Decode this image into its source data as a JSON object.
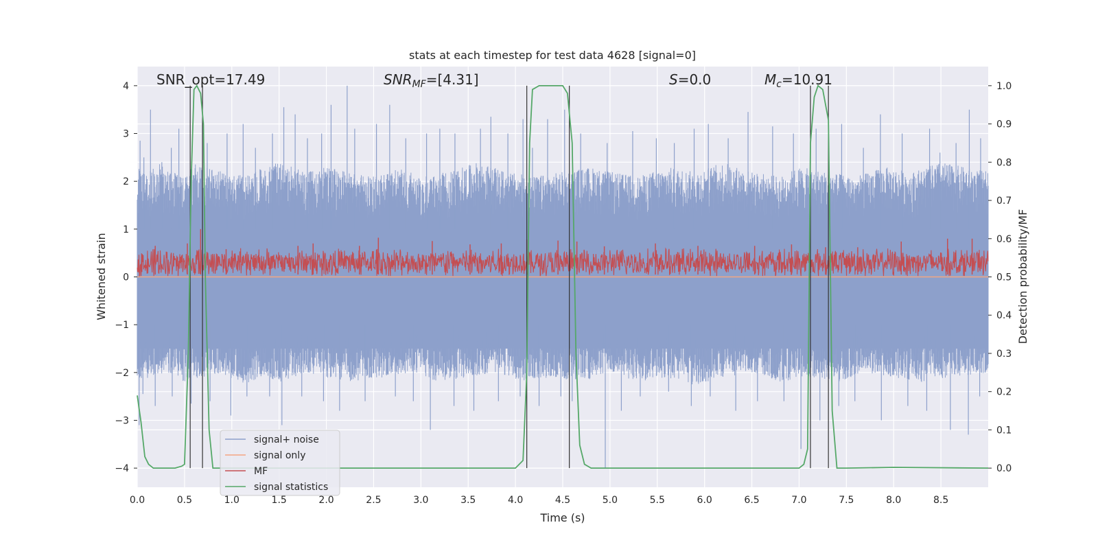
{
  "chart_data": {
    "type": "line",
    "title": "stats at each timestep for test data 4628 [signal=0]",
    "xlabel": "Time (s)",
    "ylabel": "Whitened strain",
    "ylabel_right": "Detection probability/MF",
    "xlim": [
      0.0,
      9.0
    ],
    "ylim": [
      -4.4,
      4.4
    ],
    "ylim_right": [
      -0.05,
      1.05
    ],
    "xticks": [
      0.0,
      0.5,
      1.0,
      1.5,
      2.0,
      2.5,
      3.0,
      3.5,
      4.0,
      4.5,
      5.0,
      5.5,
      6.0,
      6.5,
      7.0,
      7.5,
      8.0,
      8.5
    ],
    "xtick_labels": [
      "0.0",
      "0.5",
      "1.0",
      "1.5",
      "2.0",
      "2.5",
      "3.0",
      "3.5",
      "4.0",
      "4.5",
      "5.0",
      "5.5",
      "6.0",
      "6.5",
      "7.0",
      "7.5",
      "8.0",
      "8.5"
    ],
    "yticks": [
      -4,
      -3,
      -2,
      -1,
      0,
      1,
      2,
      3,
      4
    ],
    "ytick_labels": [
      "−4",
      "−3",
      "−2",
      "−1",
      "0",
      "1",
      "2",
      "3",
      "4"
    ],
    "yticks_right": [
      0.0,
      0.1,
      0.2,
      0.3,
      0.4,
      0.5,
      0.6,
      0.7,
      0.8,
      0.9,
      1.0
    ],
    "ytick_labels_right": [
      "0.0",
      "0.1",
      "0.2",
      "0.3",
      "0.4",
      "0.5",
      "0.6",
      "0.7",
      "0.8",
      "0.9",
      "1.0"
    ],
    "grid": true,
    "legend_position": "lower-left",
    "annotations": {
      "snr_opt": "SNR_opt=17.49",
      "snr_mf_sym": "SNR",
      "snr_mf_sub": "MF",
      "snr_mf_rest": "=[4.31]",
      "s_sym": "S",
      "s_rest": "=0.0",
      "mc_sym": "M",
      "mc_sub": "c",
      "mc_rest": "=10.91"
    },
    "detection_windows": [
      [
        0.56,
        0.69
      ],
      [
        4.12,
        4.57
      ],
      [
        7.12,
        7.31
      ]
    ],
    "series": [
      {
        "name": "signal+ noise",
        "color": "#8da0cb",
        "axis": "left",
        "style": "noise",
        "envelope_upper": [
          [
            0.0,
            2.3
          ],
          [
            0.1,
            2.2
          ],
          [
            0.2,
            2.4
          ],
          [
            0.3,
            2.3
          ],
          [
            0.5,
            2.1
          ],
          [
            0.6,
            2.4
          ],
          [
            0.7,
            2.3
          ],
          [
            0.9,
            2.2
          ],
          [
            1.0,
            2.1
          ],
          [
            1.2,
            2.2
          ],
          [
            1.5,
            2.4
          ],
          [
            1.8,
            2.2
          ],
          [
            2.0,
            2.3
          ],
          [
            2.2,
            2.2
          ],
          [
            2.5,
            2.1
          ],
          [
            2.8,
            2.3
          ],
          [
            3.0,
            2.1
          ],
          [
            3.3,
            2.2
          ],
          [
            3.6,
            2.4
          ],
          [
            3.9,
            2.2
          ],
          [
            4.2,
            2.1
          ],
          [
            4.5,
            2.2
          ],
          [
            4.8,
            2.3
          ],
          [
            5.0,
            2.2
          ],
          [
            5.3,
            2.1
          ],
          [
            5.6,
            2.3
          ],
          [
            5.9,
            2.2
          ],
          [
            6.2,
            2.4
          ],
          [
            6.5,
            2.2
          ],
          [
            6.8,
            2.1
          ],
          [
            7.0,
            2.3
          ],
          [
            7.3,
            2.2
          ],
          [
            7.6,
            2.1
          ],
          [
            7.9,
            2.3
          ],
          [
            8.2,
            2.2
          ],
          [
            8.5,
            2.4
          ],
          [
            9.0,
            2.2
          ]
        ],
        "peak_lines": [
          [
            0.03,
            2.85
          ],
          [
            0.07,
            2.5
          ],
          [
            0.14,
            3.5
          ],
          [
            0.26,
            2.4
          ],
          [
            0.36,
            2.7
          ],
          [
            0.44,
            3.1
          ],
          [
            0.69,
            3.2
          ],
          [
            0.74,
            2.8
          ],
          [
            0.95,
            3.0
          ],
          [
            1.12,
            3.2
          ],
          [
            1.25,
            2.7
          ],
          [
            1.43,
            3.0
          ],
          [
            1.55,
            3.55
          ],
          [
            1.67,
            3.4
          ],
          [
            1.8,
            2.9
          ],
          [
            1.95,
            3.0
          ],
          [
            2.05,
            3.6
          ],
          [
            2.22,
            4.0
          ],
          [
            2.3,
            3.1
          ],
          [
            2.53,
            3.2
          ],
          [
            2.67,
            3.6
          ],
          [
            2.84,
            2.9
          ],
          [
            3.06,
            3.0
          ],
          [
            3.2,
            3.1
          ],
          [
            3.36,
            3.0
          ],
          [
            3.63,
            3.1
          ],
          [
            3.74,
            3.35
          ],
          [
            3.92,
            3.0
          ],
          [
            4.08,
            3.3
          ],
          [
            4.18,
            2.7
          ],
          [
            4.34,
            3.3
          ],
          [
            4.52,
            3.5
          ],
          [
            4.69,
            3.0
          ],
          [
            4.97,
            2.8
          ],
          [
            5.24,
            3.05
          ],
          [
            5.49,
            2.9
          ],
          [
            5.68,
            2.8
          ],
          [
            5.89,
            3.1
          ],
          [
            6.04,
            3.2
          ],
          [
            6.25,
            2.9
          ],
          [
            6.46,
            3.45
          ],
          [
            6.72,
            3.15
          ],
          [
            6.94,
            3.0
          ],
          [
            7.18,
            3.1
          ],
          [
            7.45,
            3.2
          ],
          [
            7.68,
            2.7
          ],
          [
            7.86,
            3.4
          ],
          [
            8.09,
            3.0
          ],
          [
            8.38,
            3.1
          ],
          [
            8.49,
            2.6
          ],
          [
            8.66,
            2.8
          ],
          [
            8.8,
            3.5
          ],
          [
            8.92,
            2.9
          ]
        ],
        "envelope_lower": [
          [
            0.0,
            -2.1
          ],
          [
            0.1,
            -2.2
          ],
          [
            0.2,
            -2.1
          ],
          [
            0.3,
            -2.0
          ],
          [
            0.5,
            -2.2
          ],
          [
            0.7,
            -2.1
          ],
          [
            0.9,
            -2.0
          ],
          [
            1.1,
            -2.3
          ],
          [
            1.3,
            -2.1
          ],
          [
            1.5,
            -2.2
          ],
          [
            1.8,
            -2.0
          ],
          [
            2.0,
            -2.1
          ],
          [
            2.3,
            -2.2
          ],
          [
            2.6,
            -2.1
          ],
          [
            2.9,
            -2.0
          ],
          [
            3.2,
            -2.2
          ],
          [
            3.5,
            -2.1
          ],
          [
            3.8,
            -2.0
          ],
          [
            4.1,
            -2.2
          ],
          [
            4.4,
            -2.1
          ],
          [
            4.7,
            -2.2
          ],
          [
            5.0,
            -2.0
          ],
          [
            5.3,
            -2.2
          ],
          [
            5.6,
            -2.1
          ],
          [
            5.9,
            -2.3
          ],
          [
            6.2,
            -2.1
          ],
          [
            6.5,
            -2.0
          ],
          [
            6.8,
            -2.2
          ],
          [
            7.1,
            -2.1
          ],
          [
            7.4,
            -2.2
          ],
          [
            7.7,
            -2.0
          ],
          [
            8.0,
            -2.1
          ],
          [
            8.3,
            -2.2
          ],
          [
            8.6,
            -2.1
          ],
          [
            9.0,
            -2.0
          ]
        ],
        "trough_lines": [
          [
            0.02,
            -3.1
          ],
          [
            0.06,
            -2.45
          ],
          [
            0.19,
            -2.7
          ],
          [
            0.37,
            -2.5
          ],
          [
            0.57,
            -2.65
          ],
          [
            0.77,
            -2.6
          ],
          [
            0.99,
            -2.9
          ],
          [
            1.16,
            -2.5
          ],
          [
            1.4,
            -2.5
          ],
          [
            1.53,
            -3.1
          ],
          [
            1.74,
            -2.5
          ],
          [
            1.97,
            -2.6
          ],
          [
            2.14,
            -2.8
          ],
          [
            2.41,
            -2.6
          ],
          [
            2.73,
            -2.5
          ],
          [
            2.92,
            -2.6
          ],
          [
            3.1,
            -3.2
          ],
          [
            3.35,
            -2.7
          ],
          [
            3.56,
            -2.8
          ],
          [
            3.82,
            -2.6
          ],
          [
            4.05,
            -2.5
          ],
          [
            4.25,
            -2.7
          ],
          [
            4.48,
            -2.5
          ],
          [
            4.6,
            -2.6
          ],
          [
            4.95,
            -4.0
          ],
          [
            5.12,
            -2.8
          ],
          [
            5.32,
            -2.5
          ],
          [
            5.62,
            -2.4
          ],
          [
            5.86,
            -2.7
          ],
          [
            6.06,
            -2.5
          ],
          [
            6.33,
            -2.8
          ],
          [
            6.56,
            -2.6
          ],
          [
            6.84,
            -2.6
          ],
          [
            7.02,
            -3.6
          ],
          [
            7.22,
            -3.0
          ],
          [
            7.42,
            -2.7
          ],
          [
            7.59,
            -2.6
          ],
          [
            7.87,
            -3.0
          ],
          [
            8.15,
            -2.7
          ],
          [
            8.35,
            -2.8
          ],
          [
            8.6,
            -3.2
          ],
          [
            8.79,
            -3.3
          ],
          [
            8.91,
            -2.5
          ]
        ]
      },
      {
        "name": "signal only",
        "color": "#f4a582",
        "axis": "left",
        "style": "line",
        "points": [
          [
            0.0,
            0.0
          ],
          [
            9.0,
            0.0
          ]
        ]
      },
      {
        "name": "MF",
        "color": "#c44e52",
        "axis": "left",
        "style": "noise",
        "mean": 0.3,
        "band": [
          0.0,
          0.85
        ],
        "spikes": [
          [
            0.19,
            0.65
          ],
          [
            0.53,
            0.7
          ],
          [
            0.67,
            1.0
          ],
          [
            0.94,
            0.58
          ],
          [
            1.86,
            0.7
          ],
          [
            1.7,
            0.65
          ],
          [
            2.35,
            0.65
          ],
          [
            2.55,
            0.82
          ],
          [
            3.12,
            0.75
          ],
          [
            3.52,
            0.68
          ],
          [
            3.85,
            0.7
          ],
          [
            4.12,
            0.78
          ],
          [
            4.45,
            0.76
          ],
          [
            4.65,
            0.74
          ],
          [
            4.94,
            0.64
          ],
          [
            5.48,
            0.7
          ],
          [
            5.93,
            0.65
          ],
          [
            6.53,
            0.65
          ],
          [
            6.92,
            0.68
          ],
          [
            7.28,
            0.62
          ],
          [
            7.62,
            0.62
          ],
          [
            8.08,
            0.74
          ],
          [
            8.57,
            0.8
          ],
          [
            8.83,
            0.8
          ]
        ]
      },
      {
        "name": "signal statistics",
        "color": "#55a868",
        "axis": "right",
        "style": "line",
        "points": [
          [
            0.0,
            0.19
          ],
          [
            0.04,
            0.12
          ],
          [
            0.08,
            0.03
          ],
          [
            0.12,
            0.01
          ],
          [
            0.17,
            0.0
          ],
          [
            0.25,
            0.0
          ],
          [
            0.4,
            0.0
          ],
          [
            0.47,
            0.005
          ],
          [
            0.5,
            0.01
          ],
          [
            0.54,
            0.3
          ],
          [
            0.57,
            0.75
          ],
          [
            0.6,
            0.99
          ],
          [
            0.63,
            1.0
          ],
          [
            0.67,
            0.98
          ],
          [
            0.7,
            0.9
          ],
          [
            0.72,
            0.5
          ],
          [
            0.76,
            0.1
          ],
          [
            0.8,
            0.0
          ],
          [
            1.0,
            0.0
          ],
          [
            2.0,
            0.0
          ],
          [
            3.0,
            0.0
          ],
          [
            4.0,
            0.0
          ],
          [
            4.08,
            0.02
          ],
          [
            4.12,
            0.25
          ],
          [
            4.15,
            0.85
          ],
          [
            4.18,
            0.99
          ],
          [
            4.25,
            1.0
          ],
          [
            4.5,
            1.0
          ],
          [
            4.55,
            0.98
          ],
          [
            4.6,
            0.85
          ],
          [
            4.64,
            0.3
          ],
          [
            4.68,
            0.06
          ],
          [
            4.73,
            0.01
          ],
          [
            4.8,
            0.0
          ],
          [
            5.0,
            0.0
          ],
          [
            6.0,
            0.0
          ],
          [
            7.0,
            0.0
          ],
          [
            7.05,
            0.01
          ],
          [
            7.09,
            0.05
          ],
          [
            7.12,
            0.85
          ],
          [
            7.16,
            0.97
          ],
          [
            7.2,
            1.0
          ],
          [
            7.25,
            0.99
          ],
          [
            7.31,
            0.91
          ],
          [
            7.35,
            0.15
          ],
          [
            7.4,
            0.0
          ],
          [
            7.5,
            0.0
          ],
          [
            8.0,
            0.002
          ],
          [
            9.0,
            0.0
          ]
        ]
      }
    ]
  }
}
